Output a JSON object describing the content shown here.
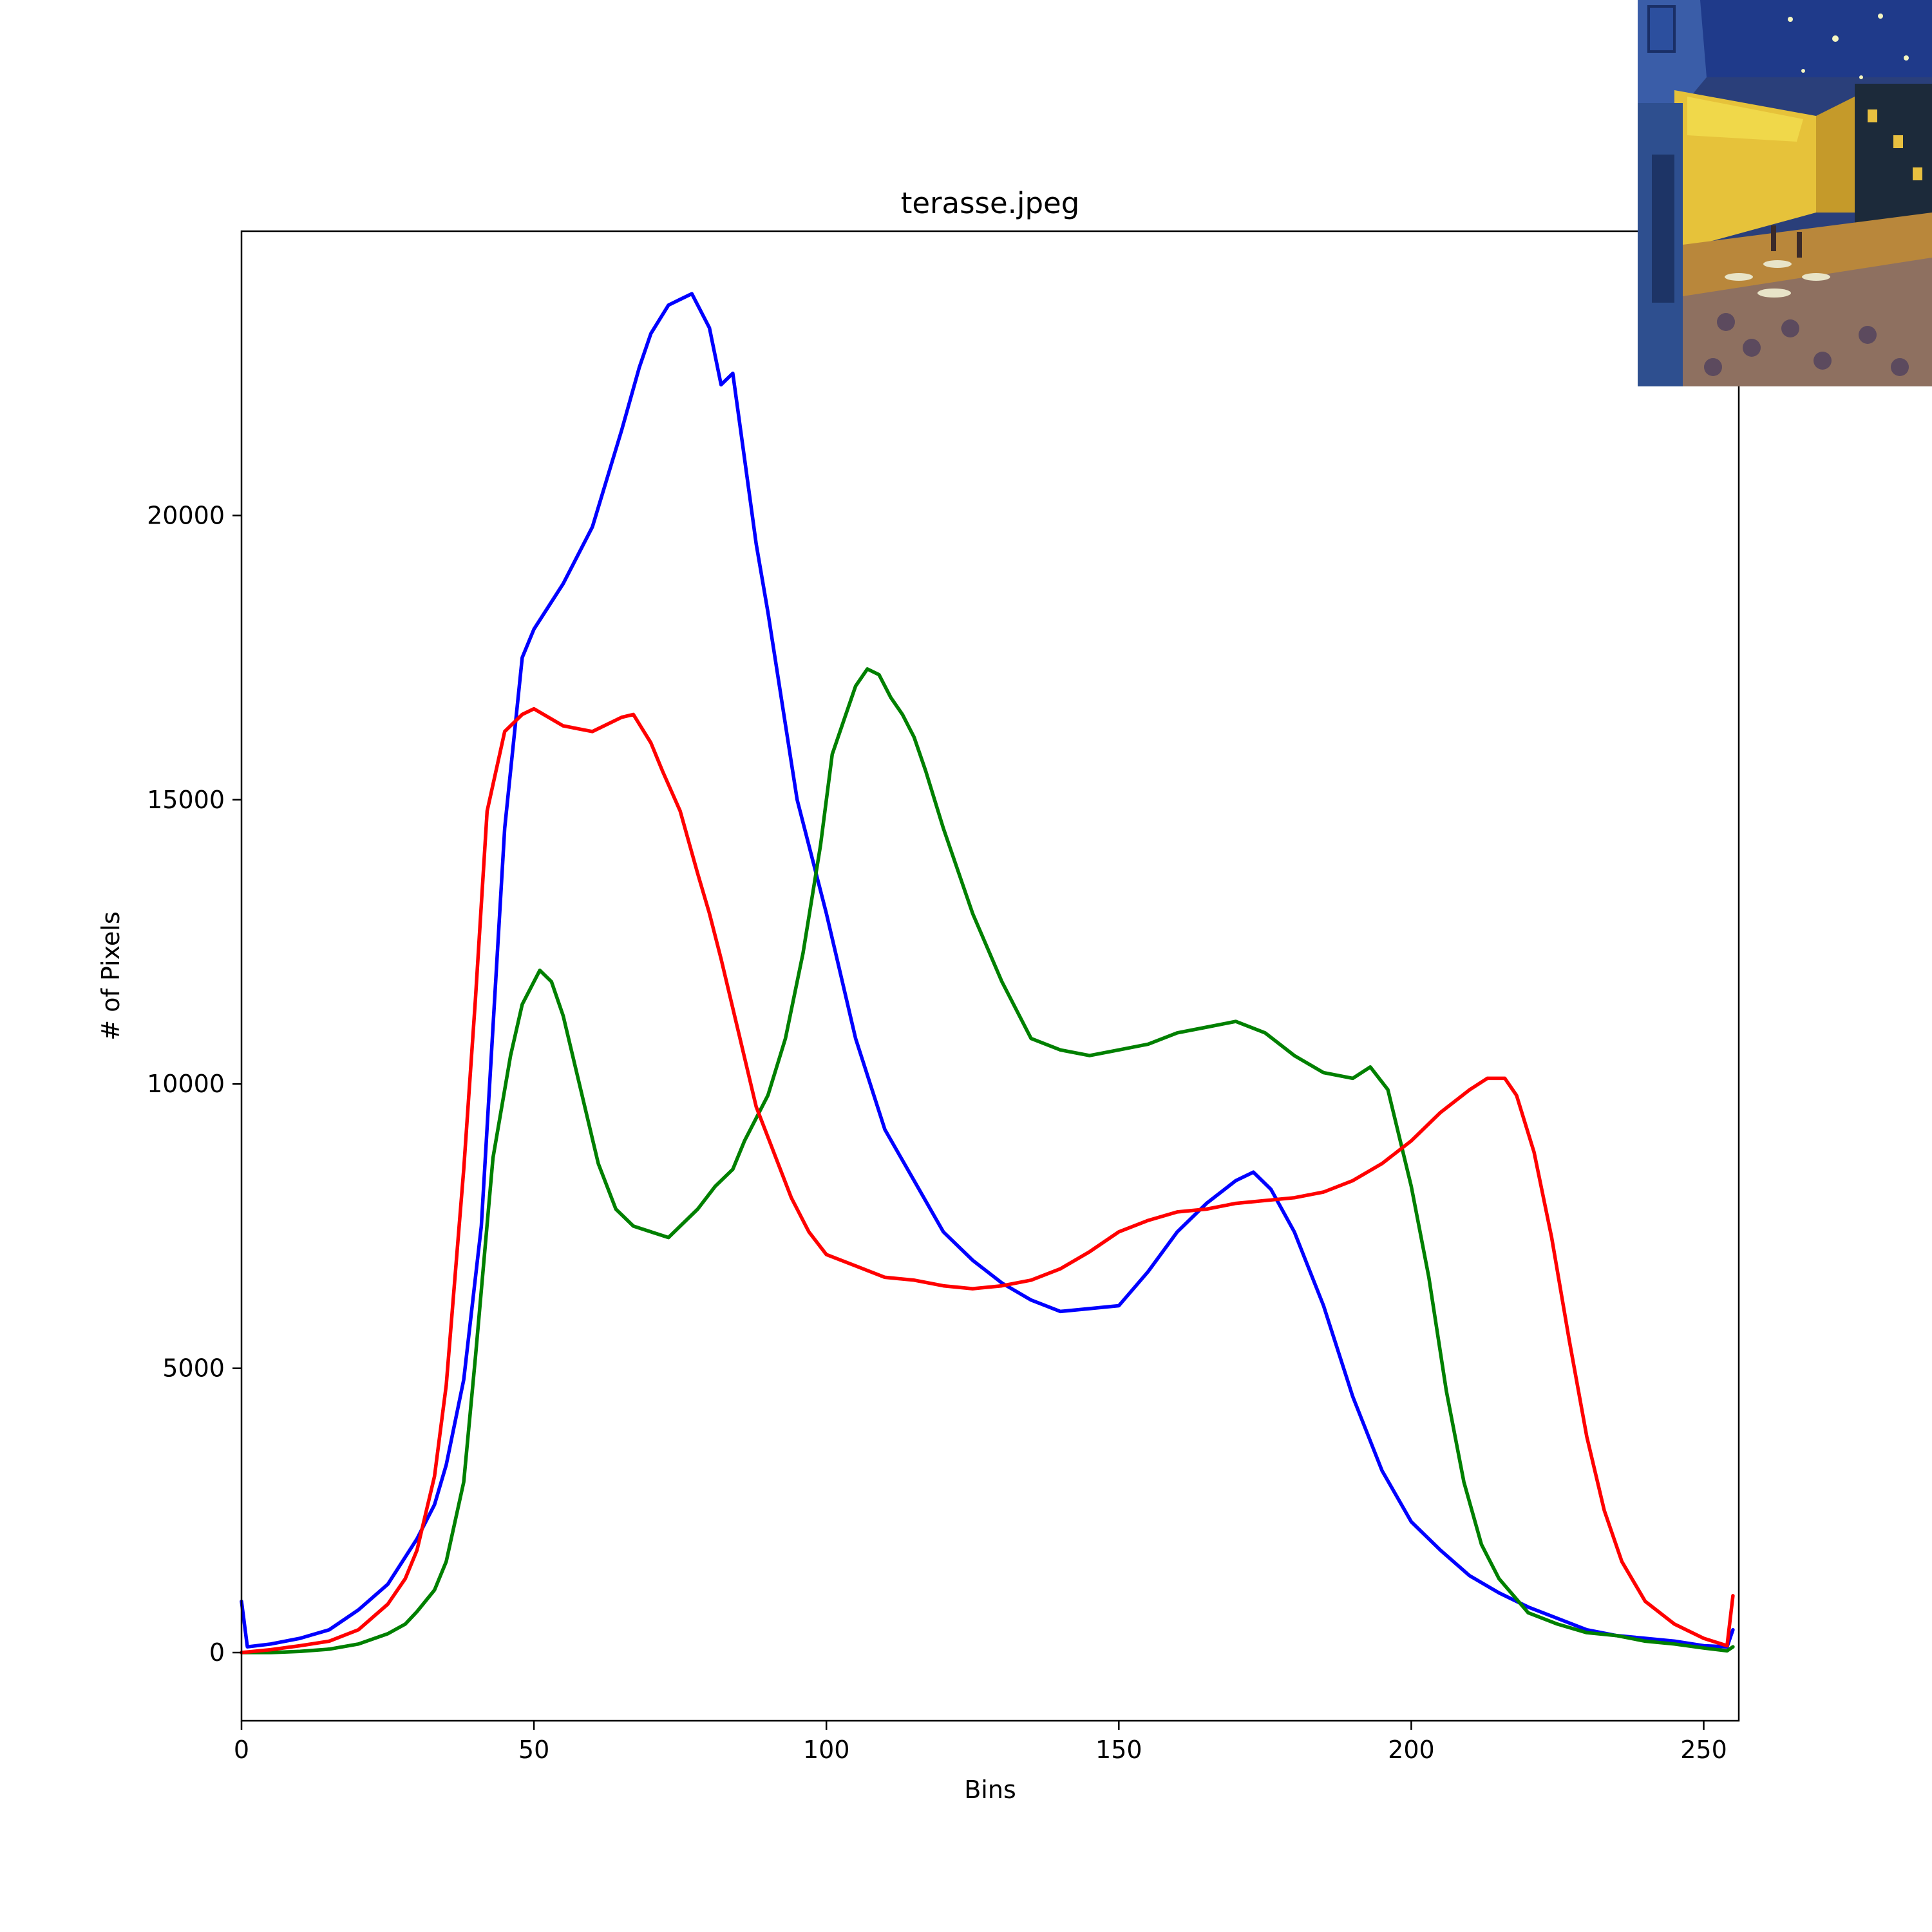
{
  "chart_data": {
    "type": "line",
    "title": "terasse.jpeg",
    "xlabel": "Bins",
    "ylabel": "# of Pixels",
    "xlim": [
      0,
      256
    ],
    "ylim": [
      -1200,
      25000
    ],
    "x_ticks": [
      0,
      50,
      100,
      150,
      200,
      250
    ],
    "y_ticks": [
      0,
      5000,
      10000,
      15000,
      20000
    ],
    "grid": false,
    "legend": "none",
    "inset_image": {
      "description": "thumbnail",
      "placement": "top-right"
    },
    "series": [
      {
        "color": "#0000ff",
        "points": [
          [
            0,
            900
          ],
          [
            1,
            100
          ],
          [
            5,
            150
          ],
          [
            10,
            250
          ],
          [
            15,
            400
          ],
          [
            20,
            750
          ],
          [
            25,
            1200
          ],
          [
            30,
            2000
          ],
          [
            33,
            2600
          ],
          [
            35,
            3300
          ],
          [
            38,
            4800
          ],
          [
            41,
            7500
          ],
          [
            43,
            11000
          ],
          [
            45,
            14500
          ],
          [
            48,
            17500
          ],
          [
            50,
            18000
          ],
          [
            55,
            18800
          ],
          [
            60,
            19800
          ],
          [
            65,
            21500
          ],
          [
            68,
            22600
          ],
          [
            70,
            23200
          ],
          [
            73,
            23700
          ],
          [
            75,
            23800
          ],
          [
            77,
            23900
          ],
          [
            80,
            23300
          ],
          [
            82,
            22300
          ],
          [
            84,
            22500
          ],
          [
            86,
            21000
          ],
          [
            88,
            19500
          ],
          [
            90,
            18300
          ],
          [
            95,
            15000
          ],
          [
            100,
            13000
          ],
          [
            105,
            10800
          ],
          [
            110,
            9200
          ],
          [
            115,
            8300
          ],
          [
            120,
            7400
          ],
          [
            125,
            6900
          ],
          [
            130,
            6500
          ],
          [
            135,
            6200
          ],
          [
            140,
            6000
          ],
          [
            145,
            6050
          ],
          [
            150,
            6100
          ],
          [
            155,
            6700
          ],
          [
            160,
            7400
          ],
          [
            165,
            7900
          ],
          [
            170,
            8300
          ],
          [
            173,
            8450
          ],
          [
            176,
            8150
          ],
          [
            180,
            7400
          ],
          [
            185,
            6100
          ],
          [
            190,
            4500
          ],
          [
            195,
            3200
          ],
          [
            200,
            2300
          ],
          [
            205,
            1800
          ],
          [
            210,
            1350
          ],
          [
            215,
            1050
          ],
          [
            220,
            800
          ],
          [
            225,
            600
          ],
          [
            230,
            400
          ],
          [
            235,
            300
          ],
          [
            240,
            250
          ],
          [
            245,
            200
          ],
          [
            250,
            120
          ],
          [
            254,
            100
          ],
          [
            255,
            400
          ]
        ]
      },
      {
        "color": "#008000",
        "points": [
          [
            0,
            0
          ],
          [
            5,
            0
          ],
          [
            10,
            20
          ],
          [
            15,
            60
          ],
          [
            20,
            150
          ],
          [
            25,
            330
          ],
          [
            28,
            500
          ],
          [
            30,
            720
          ],
          [
            33,
            1100
          ],
          [
            35,
            1600
          ],
          [
            38,
            3000
          ],
          [
            40,
            5200
          ],
          [
            43,
            8700
          ],
          [
            46,
            10500
          ],
          [
            48,
            11400
          ],
          [
            51,
            12000
          ],
          [
            53,
            11800
          ],
          [
            55,
            11200
          ],
          [
            58,
            9900
          ],
          [
            61,
            8600
          ],
          [
            64,
            7800
          ],
          [
            67,
            7500
          ],
          [
            70,
            7400
          ],
          [
            73,
            7300
          ],
          [
            75,
            7500
          ],
          [
            78,
            7800
          ],
          [
            81,
            8200
          ],
          [
            84,
            8500
          ],
          [
            86,
            9000
          ],
          [
            90,
            9800
          ],
          [
            93,
            10800
          ],
          [
            96,
            12300
          ],
          [
            99,
            14200
          ],
          [
            101,
            15800
          ],
          [
            103,
            16400
          ],
          [
            105,
            17000
          ],
          [
            107,
            17300
          ],
          [
            109,
            17200
          ],
          [
            111,
            16800
          ],
          [
            113,
            16500
          ],
          [
            115,
            16100
          ],
          [
            117,
            15500
          ],
          [
            120,
            14500
          ],
          [
            125,
            13000
          ],
          [
            130,
            11800
          ],
          [
            135,
            10800
          ],
          [
            140,
            10600
          ],
          [
            145,
            10500
          ],
          [
            150,
            10600
          ],
          [
            155,
            10700
          ],
          [
            160,
            10900
          ],
          [
            165,
            11000
          ],
          [
            170,
            11100
          ],
          [
            175,
            10900
          ],
          [
            180,
            10500
          ],
          [
            185,
            10200
          ],
          [
            190,
            10100
          ],
          [
            193,
            10300
          ],
          [
            196,
            9900
          ],
          [
            200,
            8200
          ],
          [
            203,
            6600
          ],
          [
            206,
            4600
          ],
          [
            209,
            3000
          ],
          [
            212,
            1900
          ],
          [
            215,
            1300
          ],
          [
            220,
            700
          ],
          [
            225,
            500
          ],
          [
            230,
            350
          ],
          [
            235,
            300
          ],
          [
            240,
            200
          ],
          [
            245,
            150
          ],
          [
            250,
            80
          ],
          [
            254,
            30
          ],
          [
            255,
            100
          ]
        ]
      },
      {
        "color": "#ff0000",
        "points": [
          [
            0,
            0
          ],
          [
            5,
            50
          ],
          [
            10,
            120
          ],
          [
            15,
            200
          ],
          [
            20,
            400
          ],
          [
            25,
            850
          ],
          [
            28,
            1300
          ],
          [
            30,
            1800
          ],
          [
            33,
            3100
          ],
          [
            35,
            4700
          ],
          [
            38,
            8500
          ],
          [
            40,
            11500
          ],
          [
            42,
            14800
          ],
          [
            45,
            16200
          ],
          [
            48,
            16500
          ],
          [
            50,
            16600
          ],
          [
            55,
            16300
          ],
          [
            60,
            16200
          ],
          [
            65,
            16450
          ],
          [
            67,
            16500
          ],
          [
            70,
            16000
          ],
          [
            72,
            15500
          ],
          [
            75,
            14800
          ],
          [
            78,
            13700
          ],
          [
            80,
            13000
          ],
          [
            82,
            12200
          ],
          [
            85,
            10900
          ],
          [
            88,
            9600
          ],
          [
            91,
            8800
          ],
          [
            94,
            8000
          ],
          [
            97,
            7400
          ],
          [
            100,
            7000
          ],
          [
            105,
            6800
          ],
          [
            110,
            6600
          ],
          [
            115,
            6550
          ],
          [
            120,
            6450
          ],
          [
            125,
            6400
          ],
          [
            130,
            6450
          ],
          [
            135,
            6550
          ],
          [
            140,
            6750
          ],
          [
            145,
            7050
          ],
          [
            150,
            7400
          ],
          [
            155,
            7600
          ],
          [
            160,
            7750
          ],
          [
            165,
            7800
          ],
          [
            170,
            7900
          ],
          [
            175,
            7950
          ],
          [
            180,
            8000
          ],
          [
            185,
            8100
          ],
          [
            190,
            8300
          ],
          [
            195,
            8600
          ],
          [
            200,
            9000
          ],
          [
            205,
            9500
          ],
          [
            210,
            9900
          ],
          [
            213,
            10100
          ],
          [
            216,
            10100
          ],
          [
            218,
            9800
          ],
          [
            221,
            8800
          ],
          [
            224,
            7300
          ],
          [
            227,
            5500
          ],
          [
            230,
            3800
          ],
          [
            233,
            2500
          ],
          [
            236,
            1600
          ],
          [
            240,
            900
          ],
          [
            245,
            500
          ],
          [
            250,
            250
          ],
          [
            254,
            120
          ],
          [
            255,
            1000
          ]
        ]
      }
    ]
  }
}
